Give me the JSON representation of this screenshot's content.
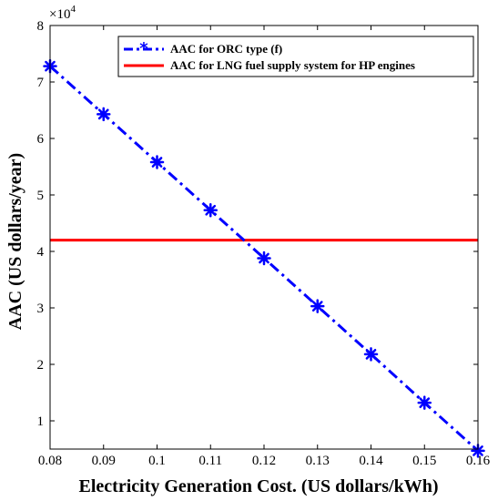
{
  "chart_data": {
    "type": "line",
    "title": "",
    "xlabel": "Electricity Generation Cost. (US dollars/kWh)",
    "ylabel": "AAC (US dollars/year)",
    "xlim": [
      0.08,
      0.16
    ],
    "ylim": [
      0.5,
      8
    ],
    "y_multiplier": "×10",
    "y_exponent": "4",
    "x_ticks": [
      "0.08",
      "0.09",
      "0.1",
      "0.11",
      "0.12",
      "0.13",
      "0.14",
      "0.15",
      "0.16"
    ],
    "y_ticks": [
      "1",
      "2",
      "3",
      "4",
      "5",
      "6",
      "7",
      "8"
    ],
    "grid": false,
    "legend_position": "top-right",
    "series": [
      {
        "name": "AAC for ORC type (f)",
        "style": "dash-dot with asterisk markers",
        "color": "#0000ff",
        "x": [
          0.08,
          0.09,
          0.1,
          0.11,
          0.12,
          0.13,
          0.14,
          0.15,
          0.16
        ],
        "y": [
          7.28,
          6.43,
          5.58,
          4.73,
          3.88,
          3.03,
          2.18,
          1.32,
          0.47
        ]
      },
      {
        "name": "AAC for LNG fuel supply system for HP engines",
        "style": "solid",
        "color": "#ff0000",
        "x": [
          0.08,
          0.16
        ],
        "y": [
          4.2,
          4.2
        ]
      }
    ]
  }
}
